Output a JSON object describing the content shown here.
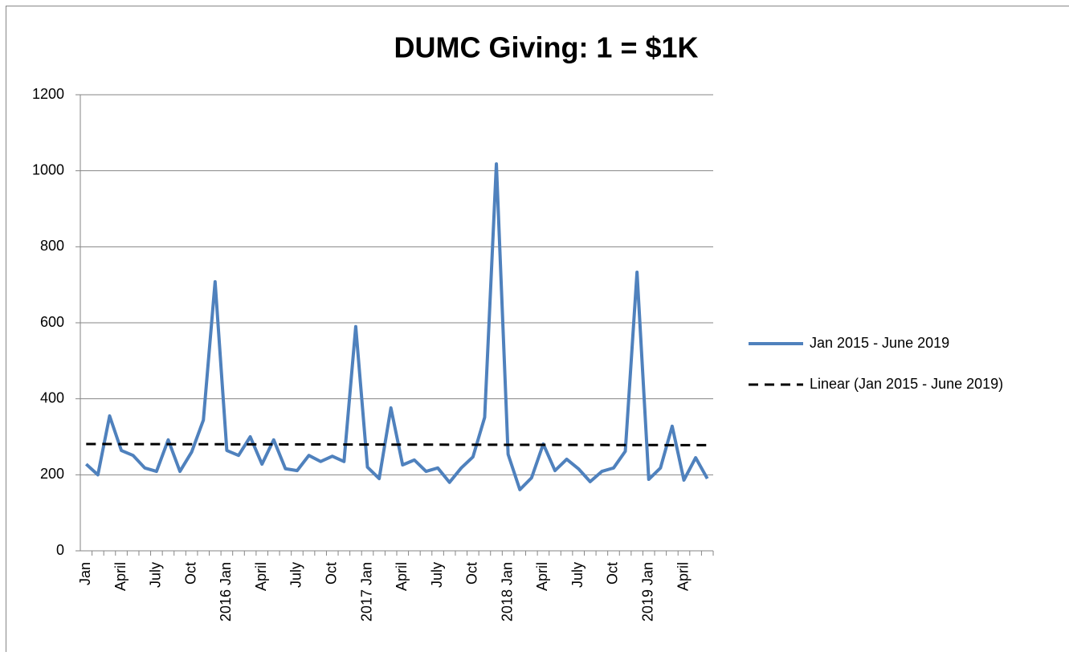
{
  "chart_data": {
    "type": "line",
    "title": "DUMC Giving: 1 = $1K",
    "categories": [
      "Jan",
      null,
      null,
      "April",
      null,
      null,
      "July",
      null,
      null,
      "Oct",
      null,
      null,
      "2016 Jan",
      null,
      null,
      "April",
      null,
      null,
      "July",
      null,
      null,
      "Oct",
      null,
      null,
      "2017 Jan",
      null,
      null,
      "April",
      null,
      null,
      "July",
      null,
      null,
      "Oct",
      null,
      null,
      "2018 Jan",
      null,
      null,
      "April",
      null,
      null,
      "July",
      null,
      null,
      "Oct",
      null,
      null,
      "2019 Jan",
      null,
      null,
      "April",
      null,
      null
    ],
    "series": [
      {
        "name": "Jan 2015 - June 2019",
        "color": "#4f81bd",
        "values": [
          228,
          200,
          355,
          264,
          251,
          218,
          209,
          292,
          209,
          260,
          344,
          708,
          264,
          251,
          300,
          228,
          292,
          216,
          211,
          251,
          235,
          249,
          235,
          590,
          220,
          190,
          376,
          226,
          239,
          209,
          218,
          180,
          218,
          247,
          351,
          1018,
          254,
          161,
          192,
          281,
          211,
          241,
          216,
          182,
          209,
          218,
          262,
          733,
          188,
          218,
          328,
          186,
          245,
          190
        ]
      }
    ],
    "trendline": {
      "name": "Linear (Jan 2015 - June 2019)",
      "color": "#000000",
      "start": 281,
      "end": 278
    },
    "ylim": [
      0,
      1200
    ],
    "yticks": [
      0,
      200,
      400,
      600,
      800,
      1000,
      1200
    ],
    "grid": true,
    "legend": "right"
  }
}
